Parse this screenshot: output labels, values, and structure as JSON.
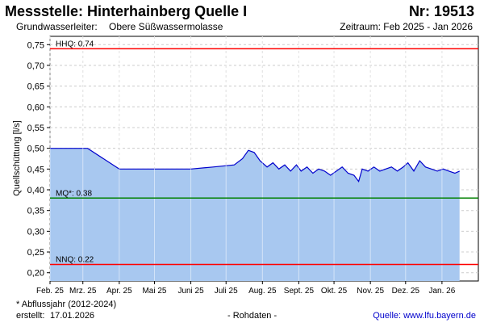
{
  "header": {
    "title": "Messstelle: Hinterhainberg Quelle I",
    "number": "Nr: 19513",
    "aquifer_label": "Grundwasserleiter:",
    "aquifer_value": "Obere Süßwassermolasse",
    "period": "Zeitraum: Feb 2025 - Jan 2026"
  },
  "footer": {
    "note": "* Abflussjahr (2012-2024)",
    "created_label": "erstellt:",
    "created_date": "17.01.2026",
    "raw_data": "- Rohdaten -",
    "source": "Quelle: www.lfu.bayern.de"
  },
  "colors": {
    "fill": "#a8c8f0",
    "line": "#0000cc",
    "hhq": "#ff0000",
    "mq": "#008000",
    "nnq": "#ff0000",
    "grid": "#cccccc"
  },
  "chart_data": {
    "type": "area",
    "ylabel": "Quellschüttung [l/s]",
    "ylim": [
      0.18,
      0.77
    ],
    "yticks": [
      "0,20",
      "0,25",
      "0,30",
      "0,35",
      "0,40",
      "0,45",
      "0,50",
      "0,55",
      "0,60",
      "0,65",
      "0,70",
      "0,75"
    ],
    "xlim": [
      "2025-02-01",
      "2026-02-01"
    ],
    "xticks": [
      {
        "label": "Feb. 25",
        "date": "2025-02-01"
      },
      {
        "label": "Mrz. 25",
        "date": "2025-03-01"
      },
      {
        "label": "Apr. 25",
        "date": "2025-04-01"
      },
      {
        "label": "Mai 25",
        "date": "2025-05-01"
      },
      {
        "label": "Juni 25",
        "date": "2025-06-01"
      },
      {
        "label": "Juli 25",
        "date": "2025-07-01"
      },
      {
        "label": "Aug. 25",
        "date": "2025-08-01"
      },
      {
        "label": "Sept. 25",
        "date": "2025-09-01"
      },
      {
        "label": "Okt. 25",
        "date": "2025-10-01"
      },
      {
        "label": "Nov. 25",
        "date": "2025-11-01"
      },
      {
        "label": "Dez. 25",
        "date": "2025-12-01"
      },
      {
        "label": "Jan. 26",
        "date": "2026-01-01"
      }
    ],
    "grid": true,
    "reference_lines": [
      {
        "label": "HHQ: 0.74",
        "value": 0.74,
        "color": "#ff0000"
      },
      {
        "label": "MQ*: 0.38",
        "value": 0.38,
        "color": "#008000"
      },
      {
        "label": "NNQ: 0.22",
        "value": 0.22,
        "color": "#ff0000"
      }
    ],
    "series": [
      {
        "x": [
          "2025-02-01",
          "2025-03-05",
          "2025-04-01",
          "2025-05-01",
          "2025-06-01",
          "2025-06-20",
          "2025-07-08",
          "2025-07-15",
          "2025-07-20",
          "2025-07-25",
          "2025-07-30",
          "2025-08-05",
          "2025-08-10",
          "2025-08-15",
          "2025-08-20",
          "2025-08-25",
          "2025-08-30",
          "2025-09-03",
          "2025-09-08",
          "2025-09-13",
          "2025-09-18",
          "2025-09-23",
          "2025-09-28",
          "2025-10-03",
          "2025-10-08",
          "2025-10-13",
          "2025-10-18",
          "2025-10-22",
          "2025-10-25",
          "2025-10-30",
          "2025-11-04",
          "2025-11-09",
          "2025-11-14",
          "2025-11-19",
          "2025-11-24",
          "2025-11-29",
          "2025-12-03",
          "2025-12-08",
          "2025-12-13",
          "2025-12-18",
          "2025-12-23",
          "2025-12-28",
          "2026-01-02",
          "2026-01-07",
          "2026-01-12",
          "2026-01-16"
        ],
        "y": [
          0.5,
          0.5,
          0.45,
          0.45,
          0.45,
          0.455,
          0.46,
          0.475,
          0.495,
          0.49,
          0.47,
          0.455,
          0.465,
          0.45,
          0.46,
          0.445,
          0.46,
          0.445,
          0.455,
          0.44,
          0.45,
          0.445,
          0.435,
          0.445,
          0.455,
          0.44,
          0.435,
          0.42,
          0.45,
          0.445,
          0.455,
          0.445,
          0.45,
          0.455,
          0.445,
          0.455,
          0.465,
          0.445,
          0.47,
          0.455,
          0.45,
          0.445,
          0.45,
          0.445,
          0.44,
          0.445
        ]
      }
    ]
  }
}
